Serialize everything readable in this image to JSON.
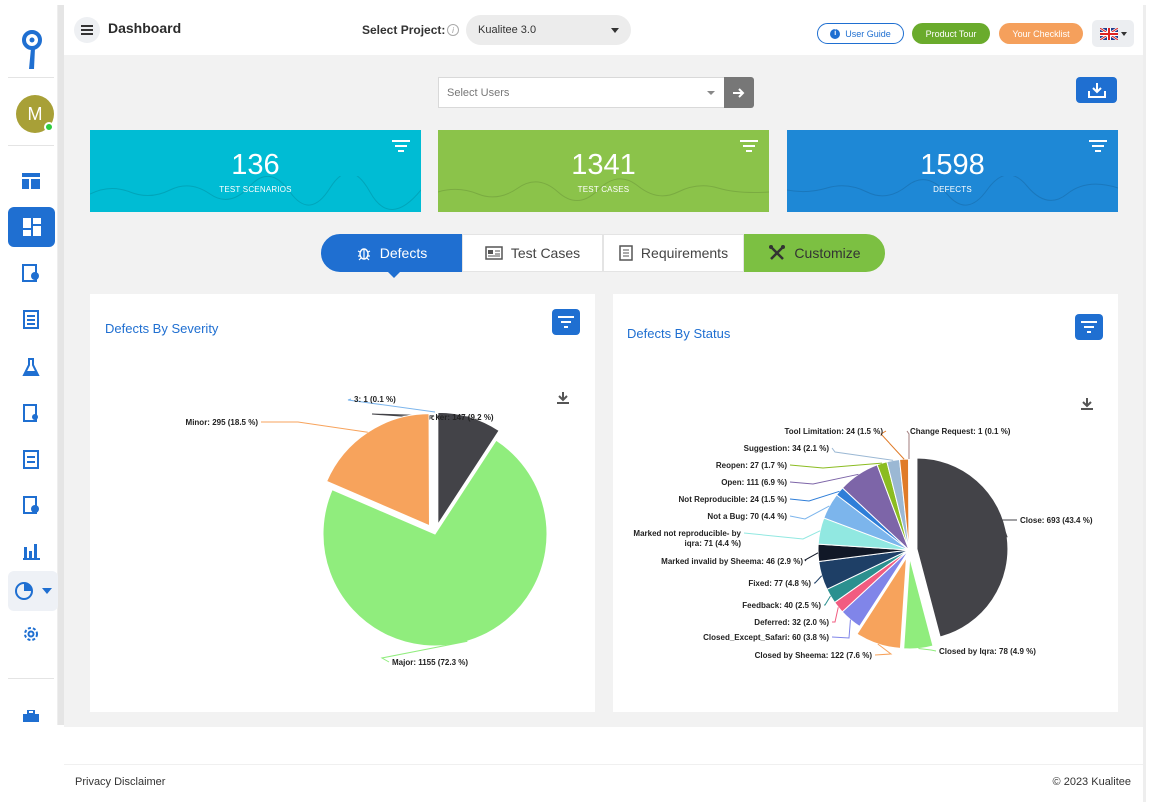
{
  "header": {
    "title": "Dashboard",
    "project_label": "Select Project:",
    "project_value": "Kualitee 3.0",
    "user_guide": "User Guide",
    "product_tour": "Product Tour",
    "your_checklist": "Your Checklist"
  },
  "sidebar": {
    "avatar_initial": "M"
  },
  "filters": {
    "users_placeholder": "Select Users"
  },
  "stats": [
    {
      "value": "136",
      "label": "TEST SCENARIOS",
      "color": "#00bcd4"
    },
    {
      "value": "1341",
      "label": "TEST CASES",
      "color": "#8bc34a"
    },
    {
      "value": "1598",
      "label": "DEFECTS",
      "color": "#1e88d6"
    }
  ],
  "tabs": [
    {
      "label": "Defects"
    },
    {
      "label": "Test Cases"
    },
    {
      "label": "Requirements"
    },
    {
      "label": "Customize"
    }
  ],
  "footer": {
    "privacy": "Privacy Disclaimer",
    "copyright": "© 2023 Kualitee"
  },
  "chart_data": [
    {
      "type": "pie",
      "title": "Defects By Severity",
      "series": [
        {
          "slices": [
            {
              "label": "Blocker: 147 (9.2 %)",
              "value": 147,
              "color": "#434348"
            },
            {
              "label": "Major: 1155 (72.3 %)",
              "value": 1155,
              "color": "#90ed7d"
            },
            {
              "label": "Minor: 295 (18.5 %)",
              "value": 295,
              "color": "#f7a35c"
            },
            {
              "label": "3: 1 (0.1 %)",
              "value": 1,
              "color": "#7cb5ec"
            }
          ]
        }
      ]
    },
    {
      "type": "pie",
      "title": "Defects By Status",
      "series": [
        {
          "slices": [
            {
              "label": "Close: 693 (43.4 %)",
              "value": 693,
              "color": "#434348"
            },
            {
              "label": "Closed by Iqra: 78 (4.9 %)",
              "value": 78,
              "color": "#90ed7d"
            },
            {
              "label": "Closed by Sheema: 122 (7.6 %)",
              "value": 122,
              "color": "#f7a35c"
            },
            {
              "label": "Closed_Except_Safari: 60 (3.8 %)",
              "value": 60,
              "color": "#8085e9"
            },
            {
              "label": "Deferred: 32 (2.0 %)",
              "value": 32,
              "color": "#f15c80"
            },
            {
              "label": "Feedback: 40 (2.5 %)",
              "value": 40,
              "color": "#2b908f"
            },
            {
              "label": "Fixed: 77 (4.8 %)",
              "value": 77,
              "color": "#1e3f66"
            },
            {
              "label": "Marked invalid by Sheema: 46 (2.9 %)",
              "value": 46,
              "color": "#111827"
            },
            {
              "label": "Marked not reproducible- by iqra: 71 (4.4 %)",
              "value": 71,
              "color": "#91e8e1"
            },
            {
              "label": "Not a Bug: 70 (4.4 %)",
              "value": 70,
              "color": "#7cb5ec"
            },
            {
              "label": "Not Reproducible: 24 (1.5 %)",
              "value": 24,
              "color": "#2f7ed8"
            },
            {
              "label": "Open: 111 (6.9 %)",
              "value": 111,
              "color": "#7d65a8"
            },
            {
              "label": "Reopen: 27 (1.7 %)",
              "value": 27,
              "color": "#8bbc21"
            },
            {
              "label": "Suggestion: 34 (2.1 %)",
              "value": 34,
              "color": "#9bb8d4"
            },
            {
              "label": "Tool Limitation: 24 (1.5 %)",
              "value": 24,
              "color": "#e07b28"
            },
            {
              "label": "Change Request: 1 (0.1 %)",
              "value": 1,
              "color": "#a27c7c"
            }
          ]
        }
      ]
    }
  ]
}
